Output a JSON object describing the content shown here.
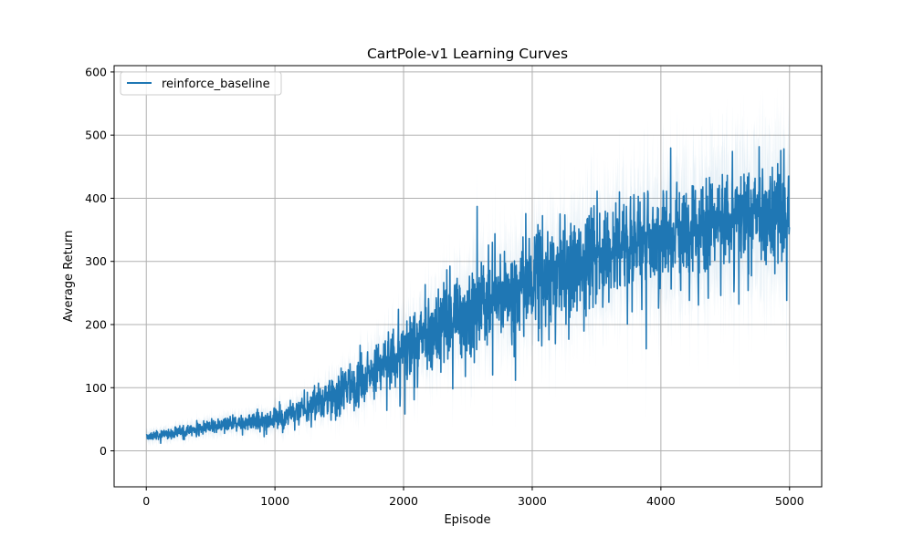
{
  "chart_data": {
    "type": "line",
    "title": "CartPole-v1 Learning Curves",
    "xlabel": "Episode",
    "ylabel": "Average Return",
    "xlim": [
      -250,
      5250
    ],
    "ylim": [
      -57,
      610
    ],
    "xticks": [
      0,
      1000,
      2000,
      3000,
      4000,
      5000
    ],
    "yticks": [
      0,
      100,
      200,
      300,
      400,
      500,
      600
    ],
    "grid": true,
    "legend_position": "upper left",
    "series": [
      {
        "name": "reinforce_baseline",
        "color": "#1f77b4",
        "band": "std shaded",
        "num_episodes": 5000,
        "x": [
          0,
          250,
          500,
          750,
          1000,
          1250,
          1500,
          1750,
          2000,
          2250,
          2500,
          2750,
          3000,
          3250,
          3500,
          3750,
          4000,
          4250,
          4500,
          4750,
          5000
        ],
        "y": [
          22,
          30,
          38,
          45,
          52,
          65,
          95,
          125,
          155,
          195,
          225,
          250,
          270,
          290,
          310,
          330,
          340,
          355,
          365,
          375,
          375
        ],
        "noise_spread": [
          5,
          8,
          10,
          12,
          15,
          20,
          30,
          40,
          50,
          55,
          60,
          65,
          70,
          70,
          70,
          70,
          70,
          70,
          70,
          70,
          70
        ],
        "band_spread": [
          10,
          12,
          14,
          16,
          18,
          22,
          30,
          40,
          50,
          60,
          70,
          75,
          80,
          85,
          90,
          95,
          100,
          105,
          110,
          115,
          115
        ]
      }
    ]
  }
}
